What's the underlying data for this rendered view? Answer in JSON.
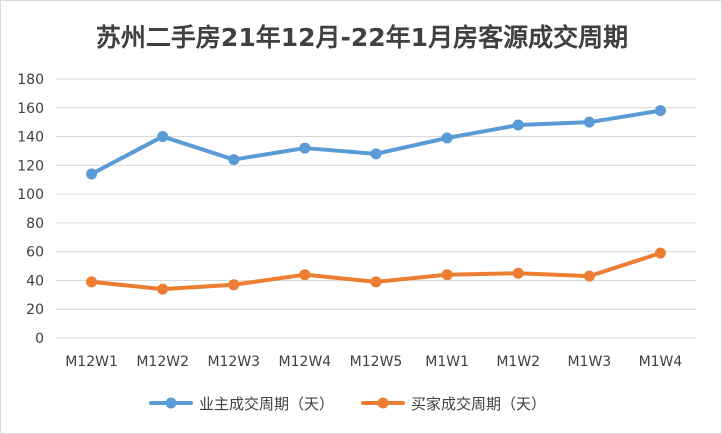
{
  "chart_data": {
    "type": "line",
    "title": "苏州二手房21年12月-22年1月房客源成交周期",
    "categories": [
      "M12W1",
      "M12W2",
      "M12W3",
      "M12W4",
      "M12W5",
      "M1W1",
      "M1W2",
      "M1W3",
      "M1W4"
    ],
    "series": [
      {
        "name": "业主成交周期（天）",
        "color": "#5b9bd5",
        "values": [
          114,
          140,
          124,
          132,
          128,
          139,
          148,
          150,
          158
        ]
      },
      {
        "name": "买家成交周期（天）",
        "color": "#ed7d31",
        "values": [
          39,
          34,
          37,
          44,
          39,
          44,
          45,
          43,
          59
        ]
      }
    ],
    "y_ticks": [
      "0",
      "20",
      "40",
      "60",
      "80",
      "100",
      "120",
      "140",
      "160",
      "180"
    ],
    "ylim": [
      0,
      180
    ],
    "ystep": 20,
    "grid": true,
    "legend_position": "bottom",
    "gridline_color": "#d9d9d9",
    "text_color": "#404040"
  }
}
